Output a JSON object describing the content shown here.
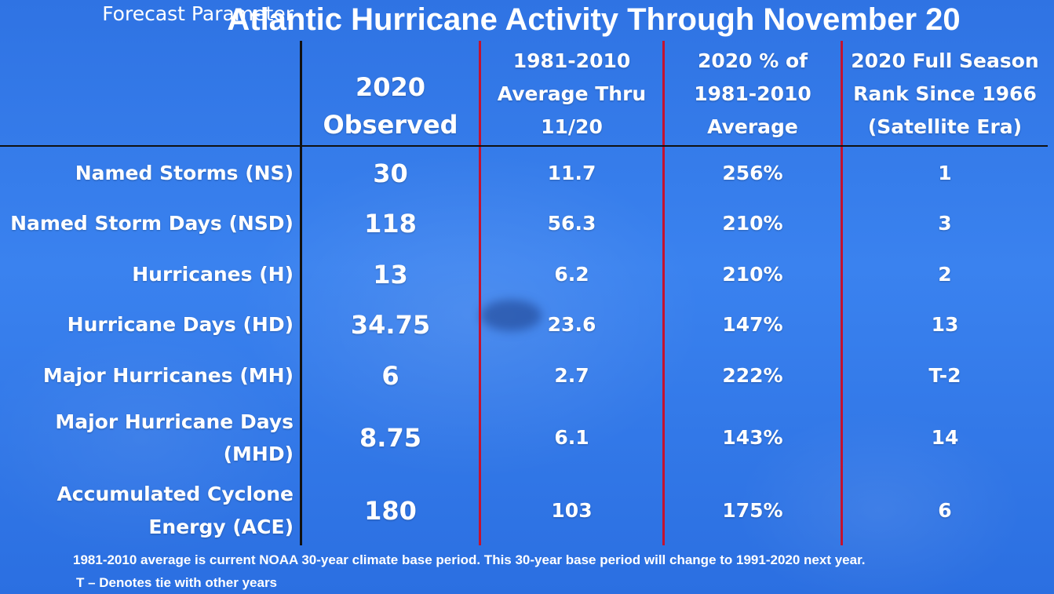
{
  "title": "Atlantic Hurricane Activity Through November 20",
  "headers": {
    "parameter": "Forecast Parameter",
    "observed_line1": "2020",
    "observed_line2": "Observed",
    "average_line1": "1981-2010",
    "average_line2": "Average Thru",
    "average_line3": "11/20",
    "percent_line1": "2020 % of",
    "percent_line2": "1981-2010",
    "percent_line3": "Average",
    "rank_line1": "2020 Full Season",
    "rank_line2": "Rank Since 1966",
    "rank_line3": "(Satellite Era)"
  },
  "rows": [
    {
      "parameter": "Named Storms (NS)",
      "observed": "30",
      "average": "11.7",
      "percent": "256%",
      "rank": "1"
    },
    {
      "parameter": "Named Storm Days (NSD)",
      "observed": "118",
      "average": "56.3",
      "percent": "210%",
      "rank": "3"
    },
    {
      "parameter": "Hurricanes (H)",
      "observed": "13",
      "average": "6.2",
      "percent": "210%",
      "rank": "2"
    },
    {
      "parameter": "Hurricane Days (HD)",
      "observed": "34.75",
      "average": "23.6",
      "percent": "147%",
      "rank": "13"
    },
    {
      "parameter": "Major Hurricanes (MH)",
      "observed": "6",
      "average": "2.7",
      "percent": "222%",
      "rank": "T-2"
    },
    {
      "parameter_line1": "Major Hurricane Days",
      "parameter_line2": "(MHD)",
      "observed": "8.75",
      "average": "6.1",
      "percent": "143%",
      "rank": "14"
    },
    {
      "parameter_line1": "Accumulated Cyclone",
      "parameter_line2": "Energy (ACE)",
      "observed": "180",
      "average": "103",
      "percent": "175%",
      "rank": "6"
    }
  ],
  "footer": {
    "line1": "1981-2010 average is current NOAA 30-year climate base period. This 30-year base period will change to 1991-2020 next year.",
    "line2": "T – Denotes tie with other years"
  },
  "colors": {
    "background": "#3A82EF",
    "text": "#FFFFFF",
    "black_divider": "#111111",
    "red_divider": "#C4122F"
  }
}
